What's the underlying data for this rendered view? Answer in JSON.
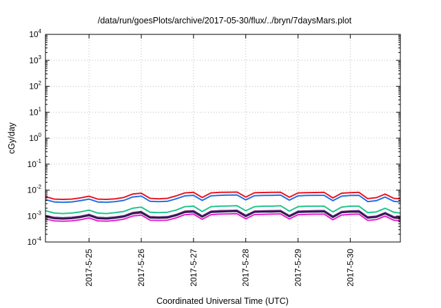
{
  "chart_data": {
    "type": "line",
    "title": "/data/run/goesPlots/archive/2017-05-30/flux/../bryn/7daysMars.plot",
    "xlabel": "Coordinated Universal Time (UTC)",
    "ylabel": "cGy/day",
    "yscale": "log",
    "ylim": [
      0.0001,
      10000
    ],
    "y_ticks": [
      {
        "base": "10",
        "exp": "-4",
        "value": 0.0001
      },
      {
        "base": "10",
        "exp": "-3",
        "value": 0.001
      },
      {
        "base": "10",
        "exp": "-2",
        "value": 0.01
      },
      {
        "base": "10",
        "exp": "-1",
        "value": 0.1
      },
      {
        "base": "10",
        "exp": "0",
        "value": 1
      },
      {
        "base": "10",
        "exp": "1",
        "value": 10
      },
      {
        "base": "10",
        "exp": "2",
        "value": 100
      },
      {
        "base": "10",
        "exp": "3",
        "value": 1000
      },
      {
        "base": "10",
        "exp": "4",
        "value": 10000
      }
    ],
    "xlim": [
      "2017-05-24T04:00",
      "2017-05-30T23:00"
    ],
    "x_ticks": [
      "2017-5-25",
      "2017-5-26",
      "2017-5-27",
      "2017-5-28",
      "2017-5-29",
      "2017-5-30"
    ],
    "grid": true,
    "x": [
      "2017-05-24T04:00",
      "2017-05-24T08:00",
      "2017-05-24T12:00",
      "2017-05-24T16:00",
      "2017-05-24T20:00",
      "2017-05-25T00:00",
      "2017-05-25T04:00",
      "2017-05-25T08:00",
      "2017-05-25T12:00",
      "2017-05-25T16:00",
      "2017-05-25T20:00",
      "2017-05-26T00:00",
      "2017-05-26T04:00",
      "2017-05-26T08:00",
      "2017-05-26T12:00",
      "2017-05-26T16:00",
      "2017-05-26T20:00",
      "2017-05-27T00:00",
      "2017-05-27T04:00",
      "2017-05-27T08:00",
      "2017-05-27T12:00",
      "2017-05-27T16:00",
      "2017-05-27T20:00",
      "2017-05-28T00:00",
      "2017-05-28T04:00",
      "2017-05-28T08:00",
      "2017-05-28T12:00",
      "2017-05-28T16:00",
      "2017-05-28T20:00",
      "2017-05-29T00:00",
      "2017-05-29T04:00",
      "2017-05-29T08:00",
      "2017-05-29T12:00",
      "2017-05-29T16:00",
      "2017-05-29T20:00",
      "2017-05-30T00:00",
      "2017-05-30T04:00",
      "2017-05-30T08:00",
      "2017-05-30T12:00",
      "2017-05-30T16:00",
      "2017-05-30T20:00",
      "2017-05-30T23:00"
    ],
    "series": [
      {
        "color": "#e8141f",
        "values": [
          0.0056,
          0.0045,
          0.0044,
          0.0045,
          0.005,
          0.0058,
          0.0045,
          0.0044,
          0.0046,
          0.0052,
          0.007,
          0.0076,
          0.0048,
          0.0046,
          0.0048,
          0.006,
          0.0078,
          0.0082,
          0.0052,
          0.0078,
          0.0082,
          0.0083,
          0.0084,
          0.0054,
          0.0079,
          0.0081,
          0.0082,
          0.0083,
          0.0053,
          0.0078,
          0.008,
          0.0081,
          0.0082,
          0.005,
          0.0076,
          0.008,
          0.0082,
          0.0047,
          0.0051,
          0.007,
          0.0048,
          0.0046
        ]
      },
      {
        "color": "#1f6fe6",
        "values": [
          0.0043,
          0.0035,
          0.0034,
          0.0035,
          0.0039,
          0.0045,
          0.0035,
          0.0034,
          0.0036,
          0.004,
          0.0054,
          0.0059,
          0.0037,
          0.0036,
          0.0037,
          0.0046,
          0.006,
          0.0063,
          0.004,
          0.006,
          0.0063,
          0.0064,
          0.0065,
          0.0042,
          0.0061,
          0.0062,
          0.0063,
          0.0064,
          0.0041,
          0.006,
          0.0062,
          0.0063,
          0.0063,
          0.0039,
          0.0058,
          0.0062,
          0.0063,
          0.0036,
          0.0039,
          0.0054,
          0.0037,
          0.0035
        ]
      },
      {
        "color": "#1fc48c",
        "values": [
          0.0016,
          0.0013,
          0.00125,
          0.0013,
          0.00145,
          0.0017,
          0.0013,
          0.00125,
          0.00135,
          0.0015,
          0.002,
          0.0022,
          0.0014,
          0.00135,
          0.0014,
          0.0017,
          0.0023,
          0.0024,
          0.0015,
          0.0023,
          0.0024,
          0.00245,
          0.0025,
          0.0016,
          0.0023,
          0.0024,
          0.0024,
          0.0025,
          0.00155,
          0.0023,
          0.0024,
          0.0024,
          0.0024,
          0.00145,
          0.0022,
          0.0024,
          0.0024,
          0.00135,
          0.00145,
          0.002,
          0.0014,
          0.0013
        ]
      },
      {
        "color": "#5a1f6e",
        "values": [
          0.00105,
          0.00088,
          0.00085,
          0.00088,
          0.00098,
          0.00115,
          0.00088,
          0.00085,
          0.00091,
          0.00102,
          0.00135,
          0.00148,
          0.00094,
          0.00091,
          0.00094,
          0.00115,
          0.00153,
          0.0016,
          0.00101,
          0.00153,
          0.0016,
          0.00163,
          0.00166,
          0.00106,
          0.00155,
          0.00158,
          0.0016,
          0.00163,
          0.00104,
          0.00153,
          0.00157,
          0.0016,
          0.00161,
          0.00098,
          0.00149,
          0.00157,
          0.0016,
          0.00092,
          0.00099,
          0.00135,
          0.00094,
          0.00088
        ]
      },
      {
        "color": "#2a1a4c",
        "values": [
          0.00095,
          0.0008,
          0.00077,
          0.0008,
          0.00089,
          0.00104,
          0.0008,
          0.00077,
          0.00083,
          0.00093,
          0.00123,
          0.00134,
          0.00085,
          0.00083,
          0.00085,
          0.00104,
          0.00139,
          0.00145,
          0.00092,
          0.00139,
          0.00145,
          0.00148,
          0.00151,
          0.00096,
          0.00141,
          0.00144,
          0.00145,
          0.00148,
          0.00095,
          0.00139,
          0.00143,
          0.00145,
          0.00146,
          0.00089,
          0.00135,
          0.00143,
          0.00145,
          0.00084,
          0.0009,
          0.00123,
          0.00085,
          0.0008
        ]
      },
      {
        "color": "#e61ed2",
        "values": [
          0.00078,
          0.00065,
          0.00063,
          0.00065,
          0.00072,
          0.00085,
          0.00065,
          0.00063,
          0.00068,
          0.00076,
          0.001,
          0.0011,
          0.00069,
          0.00068,
          0.00069,
          0.00085,
          0.00113,
          0.00119,
          0.00075,
          0.00113,
          0.00119,
          0.00121,
          0.00123,
          0.00078,
          0.00115,
          0.00117,
          0.00119,
          0.00121,
          0.00077,
          0.00113,
          0.00117,
          0.00118,
          0.00119,
          0.00072,
          0.0011,
          0.00117,
          0.00119,
          0.00068,
          0.00073,
          0.001,
          0.00069,
          0.00065
        ]
      }
    ]
  }
}
